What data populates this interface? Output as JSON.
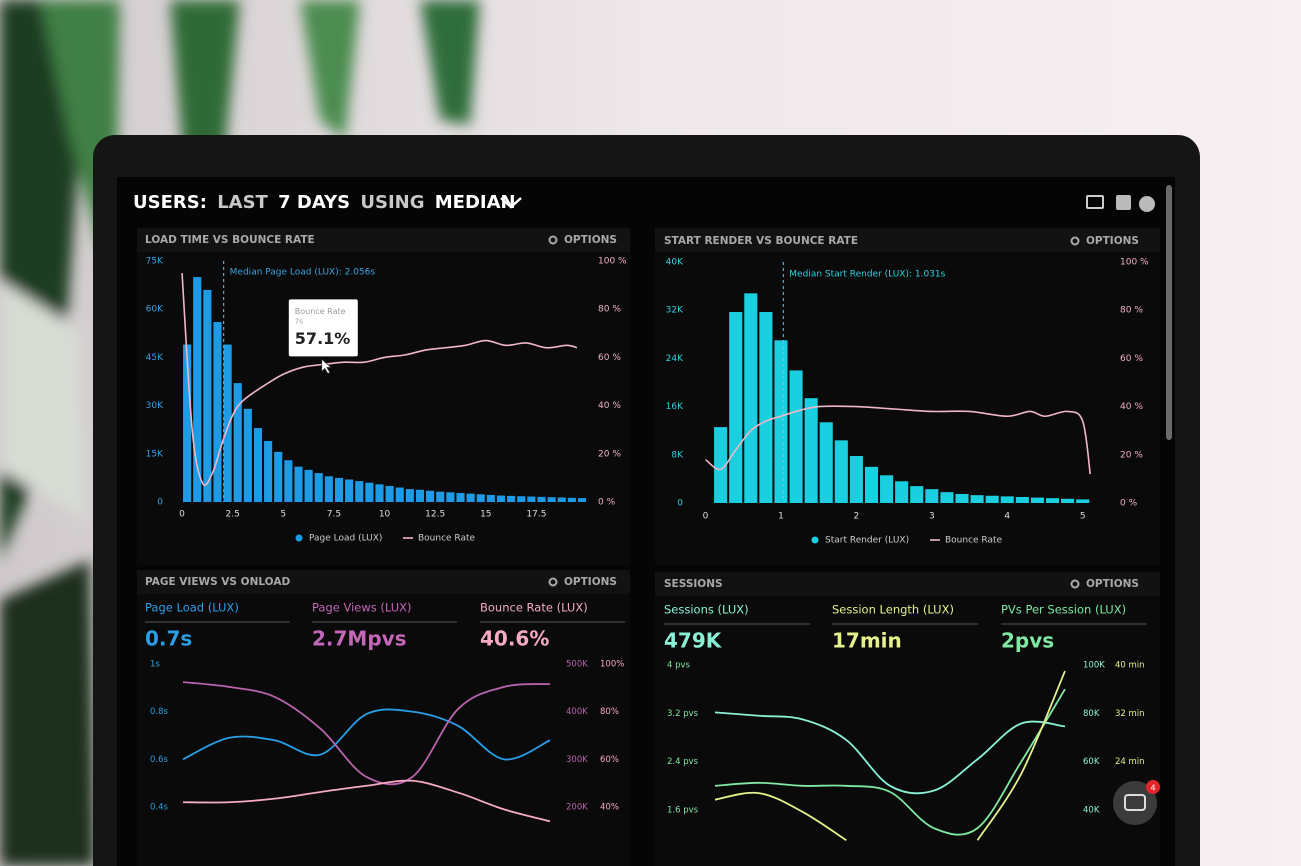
{
  "header": {
    "title_parts": [
      "USERS:",
      "LAST",
      "7 DAYS",
      "USING",
      "MEDIAN"
    ]
  },
  "chat_badge": "4",
  "panels": [
    {
      "title": "LOAD TIME VS BOUNCE RATE",
      "options": "OPTIONS",
      "chart": {
        "type": "histogram-line",
        "bins": [
          0,
          0.5,
          1,
          1.5,
          2,
          2.5,
          3,
          3.5,
          4,
          4.5,
          5,
          5.5,
          6,
          6.5,
          7,
          7.5,
          8,
          8.5,
          9,
          9.5,
          10,
          10.5,
          11,
          11.5,
          12,
          12.5,
          13,
          13.5,
          14,
          14.5,
          15,
          15.5,
          16,
          16.5,
          17,
          17.5,
          18,
          18.5,
          19,
          19.5,
          20
        ],
        "series": [
          {
            "name": "Page Load (LUX)",
            "color": "#1e9be6",
            "values": [
              49000,
              70000,
              66000,
              56000,
              49000,
              37000,
              29000,
              23000,
              19000,
              15600,
              13000,
              11000,
              10000,
              9000,
              8000,
              7500,
              7000,
              6500,
              6000,
              5500,
              5000,
              4500,
              4000,
              3800,
              3500,
              3200,
              3000,
              2800,
              2600,
              2400,
              2200,
              2000,
              1900,
              1800,
              1700,
              1600,
              1500,
              1400,
              1300,
              1200
            ]
          },
          {
            "name": "Bounce Rate",
            "color": "#f2b6c9",
            "axis": "y2",
            "x": [
              0,
              0.5,
              1,
              1.5,
              2,
              2.5,
              3,
              4,
              5,
              6,
              7,
              8,
              9,
              10,
              11,
              12,
              13,
              14,
              15,
              16,
              17,
              18,
              19,
              19.5
            ],
            "values": [
              95,
              30,
              8,
              12,
              25,
              36,
              42,
              48,
              53,
              56,
              57.1,
              58,
              58,
              60,
              61,
              63,
              64,
              65,
              67,
              65,
              66,
              64,
              65,
              64
            ]
          }
        ],
        "xlim": [
          -0.2,
          19.8
        ],
        "xticks": [
          0,
          2.5,
          5,
          7.5,
          10,
          12.5,
          15,
          17.5
        ],
        "ylim": [
          0,
          75000
        ],
        "yticks": [
          0,
          {
            "value": 15000,
            "label": "15K"
          },
          {
            "value": 30000,
            "label": "30K"
          },
          {
            "value": 45000,
            "label": "45K"
          },
          {
            "value": 60000,
            "label": "60K"
          },
          {
            "value": 75000,
            "label": "75K"
          }
        ],
        "y2lim": [
          0,
          100
        ],
        "y2ticks": [
          {
            "value": 0,
            "label": "0 %"
          },
          {
            "value": 20,
            "label": "20 %"
          },
          {
            "value": 40,
            "label": "40 %"
          },
          {
            "value": 60,
            "label": "60 %"
          },
          {
            "value": 80,
            "label": "80 %"
          },
          {
            "value": 100,
            "label": "100 %"
          }
        ],
        "median": {
          "value": 2.056,
          "label": "Median Page Load (LUX): 2.056s"
        },
        "tooltip": {
          "title": "Bounce Rate",
          "subtitle": "7s",
          "value": 57.1,
          "value_label": "57.1%"
        }
      }
    },
    {
      "title": "START RENDER VS BOUNCE RATE",
      "options": "OPTIONS",
      "chart": {
        "type": "histogram-line",
        "bins": [
          0.1,
          0.3,
          0.5,
          0.7,
          0.9,
          1.1,
          1.3,
          1.5,
          1.7,
          1.9,
          2.1,
          2.3,
          2.5,
          2.7,
          2.9,
          3.1,
          3.3,
          3.5,
          3.7,
          3.9,
          4.1,
          4.3,
          4.5,
          4.7,
          4.9,
          5.1
        ],
        "series": [
          {
            "name": "Start Render (LUX)",
            "color": "#19cfe0",
            "values": [
              12600,
              31700,
              34800,
              31700,
              27000,
              22000,
              17400,
              13400,
              10400,
              7800,
              6000,
              4600,
              3600,
              2800,
              2300,
              1800,
              1500,
              1300,
              1200,
              1100,
              1000,
              900,
              800,
              700,
              600
            ]
          },
          {
            "name": "Bounce Rate",
            "color": "#f2b6c9",
            "axis": "y2",
            "x": [
              0,
              0.2,
              0.4,
              0.6,
              0.8,
              1,
              1.2,
              1.5,
              2,
              2.5,
              3,
              3.5,
              4,
              4.3,
              4.5,
              4.8,
              5,
              5.1
            ],
            "values": [
              18,
              14,
              22,
              30,
              34,
              36,
              38,
              40,
              40,
              39,
              38,
              38,
              36,
              38,
              36,
              38,
              34,
              12
            ]
          }
        ],
        "xlim": [
          -0.1,
          5.15
        ],
        "xticks": [
          0,
          1,
          2,
          3,
          4,
          5
        ],
        "ylim": [
          0,
          40000
        ],
        "yticks": [
          0,
          {
            "value": 8000,
            "label": "8K"
          },
          {
            "value": 16000,
            "label": "16K"
          },
          {
            "value": 24000,
            "label": "24K"
          },
          {
            "value": 32000,
            "label": "32K"
          },
          {
            "value": 40000,
            "label": "40K"
          }
        ],
        "y2lim": [
          0,
          100
        ],
        "y2ticks": [
          {
            "value": 0,
            "label": "0 %"
          },
          {
            "value": 20,
            "label": "20 %"
          },
          {
            "value": 40,
            "label": "40 %"
          },
          {
            "value": 60,
            "label": "60 %"
          },
          {
            "value": 80,
            "label": "80 %"
          },
          {
            "value": 100,
            "label": "100 %"
          }
        ],
        "median": {
          "value": 1.031,
          "label": "Median Start Render (LUX): 1.031s"
        }
      }
    },
    {
      "title": "PAGE VIEWS VS ONLOAD",
      "options": "OPTIONS",
      "metrics": [
        {
          "label": "Page Load (LUX)",
          "value": "0.7s",
          "color": "#2a9fe8"
        },
        {
          "label": "Page Views (LUX)",
          "value": "2.7Mpvs",
          "color": "#c467b9"
        },
        {
          "label": "Bounce Rate (LUX)",
          "value": "40.6%",
          "color": "#f6aac4"
        }
      ],
      "chart": {
        "type": "line",
        "categories": [
          null,
          null,
          null,
          null,
          null,
          null,
          null,
          null,
          null
        ],
        "series": [
          {
            "color": "#2a9fe8",
            "values": [
              0.6,
              0.69,
              0.68,
              0.62,
              0.79,
              0.8,
              0.74,
              0.6,
              0.68
            ]
          },
          {
            "color": "#b863ad",
            "axis": "y2",
            "values": [
              462000,
              452000,
              431000,
              364000,
              263000,
              263000,
              406000,
              452000,
              458000
            ]
          },
          {
            "color": "#f6aac4",
            "axis": "y3",
            "values": [
              42,
              42,
              43.5,
              46.3,
              48.9,
              51,
              46,
              39,
              34
            ]
          }
        ],
        "ylim": [
          0.4,
          1
        ],
        "yticks": [
          {
            "value": 1,
            "label": "1s"
          },
          {
            "value": 0.8,
            "label": "0.8s"
          },
          {
            "value": 0.6,
            "label": "0.6s"
          },
          {
            "value": 0.4,
            "label": "0.4s"
          }
        ],
        "y2lim": [
          200000,
          500000
        ],
        "y2ticks": [
          {
            "value": 500000,
            "label": "500K"
          },
          {
            "value": 400000,
            "label": "400K"
          },
          {
            "value": 300000,
            "label": "300K"
          },
          {
            "value": 200000,
            "label": "200K"
          }
        ],
        "y3lim": [
          40,
          100
        ],
        "y3ticks": [
          {
            "value": 100,
            "label": "100%"
          },
          {
            "value": 80,
            "label": "80%"
          },
          {
            "value": 60,
            "label": "60%"
          },
          {
            "value": 40,
            "label": "40%"
          }
        ]
      }
    },
    {
      "title": "SESSIONS",
      "options": "OPTIONS",
      "metrics": [
        {
          "label": "Sessions (LUX)",
          "value": "479K",
          "color": "#8af0d6"
        },
        {
          "label": "Session Length (LUX)",
          "value": "17min",
          "color": "#e6f08c"
        },
        {
          "label": "PVs Per Session (LUX)",
          "value": "2pvs",
          "color": "#7fe8a2"
        }
      ],
      "chart": {
        "type": "line",
        "categories": [
          null,
          null,
          null,
          null,
          null,
          null,
          null,
          null,
          null
        ],
        "series": [
          {
            "color": "#7fe8a2",
            "values": [
              2.0,
              2.05,
              2.0,
              2.0,
              1.9,
              1.3,
              1.3,
              2.4,
              3.6
            ]
          },
          {
            "color": "#8af0d6",
            "axis": "y2",
            "values": [
              80400,
              79000,
              77500,
              69000,
              50000,
              48000,
              61000,
              75800,
              74600
            ]
          },
          {
            "color": "#e6f08c",
            "axis": "y3",
            "values": [
              17.7,
              18.8,
              15.7,
              11,
              null,
              null,
              11,
              22,
              39
            ]
          }
        ],
        "ylim": [
          1.6,
          4
        ],
        "yticks": [
          {
            "value": 4,
            "label": "4 pvs"
          },
          {
            "value": 3.2,
            "label": "3.2 pvs"
          },
          {
            "value": 2.4,
            "label": "2.4 pvs"
          },
          {
            "value": 1.6,
            "label": "1.6 pvs"
          }
        ],
        "y2lim": [
          40000,
          100000
        ],
        "y2ticks": [
          {
            "value": 100000,
            "label": "100K"
          },
          {
            "value": 80000,
            "label": "80K"
          },
          {
            "value": 60000,
            "label": "60K"
          },
          {
            "value": 40000,
            "label": "40K"
          }
        ],
        "y3lim": [
          16,
          40
        ],
        "y3ticks": [
          {
            "value": 40,
            "label": "40 min"
          },
          {
            "value": 32,
            "label": "32 min"
          },
          {
            "value": 24,
            "label": "24 min"
          }
        ]
      }
    }
  ]
}
